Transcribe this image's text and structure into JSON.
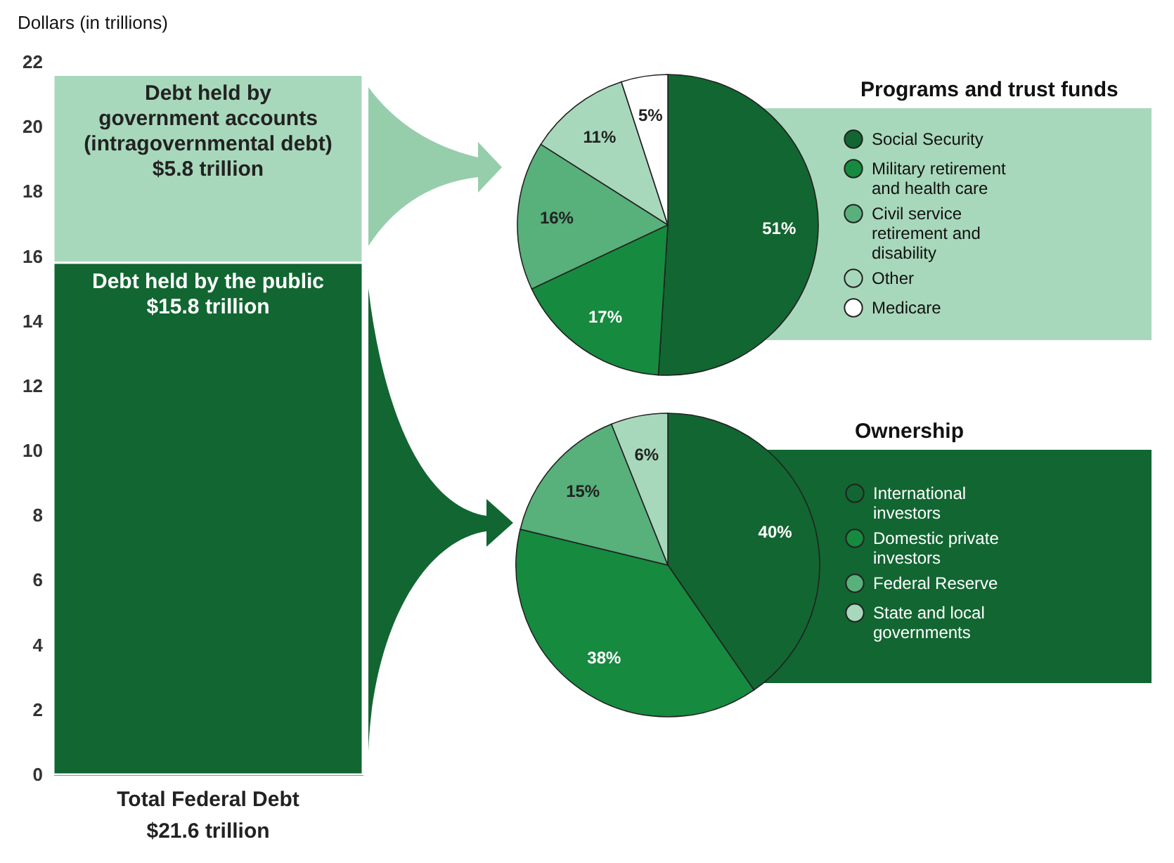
{
  "chart_data": [
    {
      "type": "bar",
      "stacked": true,
      "ylabel": "Dollars (in trillions)",
      "categories": [
        "Total Federal Debt"
      ],
      "series": [
        {
          "name": "Debt held by the public",
          "color": "#126631",
          "values": [
            15.8
          ],
          "value_labels": [
            "$15.8 trillion"
          ]
        },
        {
          "name": "Debt held by government accounts (intragovernmental debt)",
          "color": "#a8d8bb",
          "values": [
            5.8
          ],
          "value_labels": [
            "$5.8 trillion"
          ]
        }
      ],
      "totals": [
        "$21.6 trillion"
      ],
      "ylim": [
        0,
        22
      ],
      "yticks": [
        0,
        2,
        4,
        6,
        8,
        10,
        12,
        14,
        16,
        18,
        20,
        22
      ]
    },
    {
      "type": "pie",
      "title": "Programs and trust funds",
      "categories": [
        "Social Security",
        "Military retirement and health care",
        "Civil service retirement and disability",
        "Other",
        "Medicare"
      ],
      "values": [
        51,
        17,
        16,
        11,
        5
      ],
      "colors": [
        "#126631",
        "#168a3e",
        "#58b07a",
        "#a8d8bb",
        "#ffffff"
      ],
      "value_labels": [
        "51%",
        "17%",
        "16%",
        "11%",
        "5%"
      ],
      "legend": "right"
    },
    {
      "type": "pie",
      "title": "Ownership",
      "categories": [
        "International investors",
        "Domestic private investors",
        "Federal Reserve",
        "State and local governments"
      ],
      "values": [
        40,
        38,
        15,
        6
      ],
      "colors": [
        "#126631",
        "#168a3e",
        "#58b07a",
        "#a8d8bb"
      ],
      "value_labels": [
        "40%",
        "38%",
        "15%",
        "6%"
      ],
      "legend": "right"
    }
  ]
}
